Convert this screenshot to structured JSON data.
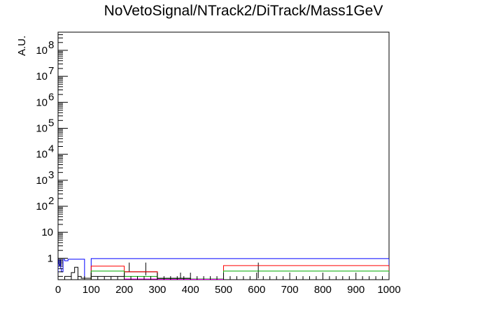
{
  "chart_data": {
    "type": "histogram",
    "title": "NoVetoSignal/NTrack2/DiTrack/Mass1GeV",
    "xlabel": "",
    "ylabel": "A.U.",
    "xlim": [
      0,
      1000
    ],
    "ylim": [
      0.15,
      500000000
    ],
    "yscale": "log",
    "grid": false,
    "x_ticks": [
      "0",
      "100",
      "200",
      "300",
      "400",
      "500",
      "600",
      "700",
      "800",
      "900",
      "1000"
    ],
    "y_ticks": [
      {
        "value": 1,
        "label": "1"
      },
      {
        "value": 10,
        "label": "10"
      },
      {
        "value": 100,
        "label": "10",
        "exp": "2"
      },
      {
        "value": 1000,
        "label": "10",
        "exp": "3"
      },
      {
        "value": 10000,
        "label": "10",
        "exp": "4"
      },
      {
        "value": 100000,
        "label": "10",
        "exp": "5"
      },
      {
        "value": 1000000,
        "label": "10",
        "exp": "6"
      },
      {
        "value": 10000000,
        "label": "10",
        "exp": "7"
      },
      {
        "value": 100000000,
        "label": "10",
        "exp": "8"
      }
    ],
    "series": [
      {
        "color": "#0000ff",
        "edges": [
          0,
          2,
          4,
          6,
          8,
          10,
          15,
          20,
          30,
          40,
          50,
          60,
          80,
          100,
          200,
          500,
          1000
        ],
        "values": [
          0.9,
          0.6,
          0.5,
          0.85,
          0.4,
          0.3,
          0.9,
          0.8,
          0.92,
          0.92,
          0.92,
          0.92,
          0.17,
          0.97,
          0.97,
          0.97
        ]
      },
      {
        "color": "#000000",
        "edges": [
          20,
          30,
          40,
          50,
          60,
          70,
          100,
          200,
          300,
          400,
          500
        ],
        "values": [
          0.2,
          0.2,
          0.28,
          0.45,
          0.2,
          0.17,
          0.2,
          0.3,
          0.17,
          0.16
        ],
        "errors": [
          [
            215,
            0.3,
            0.68
          ],
          [
            265,
            0.22,
            0.68
          ],
          [
            370,
            0.17,
            0.28
          ],
          [
            605,
            0.17,
            0.68
          ]
        ]
      },
      {
        "color": "#ff0000",
        "edges": [
          100,
          200,
          300,
          500,
          1000
        ],
        "values": [
          0.5,
          0.3,
          0.16,
          0.52
        ]
      },
      {
        "color": "#00aa00",
        "edges": [
          100,
          200,
          300,
          500,
          1000
        ],
        "values": [
          0.32,
          0.2,
          0.16,
          0.32
        ]
      },
      {
        "color": "#ff00ff",
        "edges": [
          200,
          300,
          500
        ],
        "values": [
          0.16,
          0.155
        ]
      }
    ]
  }
}
